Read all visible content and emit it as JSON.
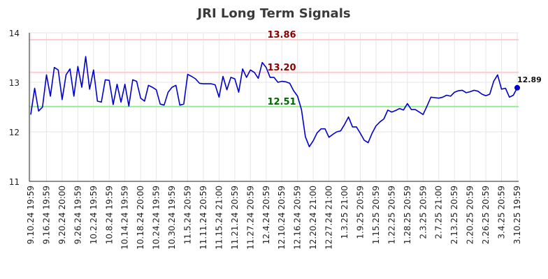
{
  "chart_data": {
    "type": "line",
    "title": "JRI Long Term Signals",
    "xlabel": "",
    "ylabel": "",
    "ylim": [
      11,
      14
    ],
    "yticks": [
      11,
      12,
      13,
      14
    ],
    "grid": true,
    "x_tick_labels": [
      "9.10.24 19:59",
      "9.16.24 19:59",
      "9.20.24 20:00",
      "9.26.24 19:59",
      "10.2.24 19:59",
      "10.8.24 19:59",
      "10.14.24 19:59",
      "10.18.24 20:00",
      "10.24.24 19:59",
      "10.30.24 19:59",
      "11.5.24 20:59",
      "11.11.24 20:59",
      "11.15.24 21:00",
      "11.21.24 20:59",
      "11.27.24 20:59",
      "12.4.24 20:59",
      "12.10.24 20:59",
      "12.16.24 20:59",
      "12.20.24 21:00",
      "12.27.24 21:00",
      "1.3.25 21:00",
      "1.9.25 20:59",
      "1.15.25 20:59",
      "1.22.25 20:59",
      "1.28.25 20:59",
      "2.3.25 20:59",
      "2.7.25 21:00",
      "2.13.25 20:59",
      "2.20.25 20:59",
      "2.26.25 20:59",
      "3.4.25 20:59",
      "3.10.25 19:59"
    ],
    "reference_lines": [
      {
        "value": 13.86,
        "label": "13.86",
        "color": "#ffcccc",
        "label_color": "#8b0000"
      },
      {
        "value": 13.2,
        "label": "13.20",
        "color": "#ffcccc",
        "label_color": "#8b0000"
      },
      {
        "value": 12.51,
        "label": "12.51",
        "color": "#90ee90",
        "label_color": "#006400"
      }
    ],
    "series": [
      {
        "color": "#0000cc",
        "values": [
          12.35,
          12.88,
          12.42,
          12.5,
          13.15,
          12.72,
          13.3,
          13.25,
          12.65,
          13.15,
          13.27,
          12.72,
          13.32,
          12.9,
          13.52,
          12.86,
          13.25,
          12.62,
          12.6,
          13.05,
          13.04,
          12.55,
          12.96,
          12.6,
          12.96,
          12.52,
          13.05,
          13.02,
          12.68,
          12.62,
          12.94,
          12.9,
          12.85,
          12.56,
          12.54,
          12.8,
          12.9,
          12.94,
          12.54,
          12.56,
          13.16,
          13.12,
          13.07,
          12.98,
          12.97,
          12.97,
          12.97,
          12.95,
          12.7,
          13.12,
          12.85,
          13.1,
          13.07,
          12.8,
          13.27,
          13.1,
          13.25,
          13.2,
          13.08,
          13.4,
          13.3,
          13.1,
          13.1,
          13.0,
          13.02,
          13.01,
          12.98,
          12.83,
          12.72,
          12.45,
          11.9,
          11.7,
          11.82,
          11.98,
          12.06,
          12.06,
          11.89,
          11.95,
          12.0,
          12.02,
          12.15,
          12.3,
          12.1,
          12.1,
          11.97,
          11.83,
          11.78,
          11.97,
          12.12,
          12.2,
          12.26,
          12.44,
          12.4,
          12.43,
          12.47,
          12.44,
          12.57,
          12.45,
          12.45,
          12.4,
          12.35,
          12.52,
          12.7,
          12.69,
          12.68,
          12.7,
          12.74,
          12.72,
          12.8,
          12.83,
          12.84,
          12.79,
          12.81,
          12.84,
          12.82,
          12.76,
          12.73,
          12.76,
          13.02,
          13.15,
          12.86,
          12.88,
          12.7,
          12.74,
          12.89
        ]
      }
    ],
    "last_value": {
      "value": 12.89,
      "label": "12.89"
    }
  }
}
